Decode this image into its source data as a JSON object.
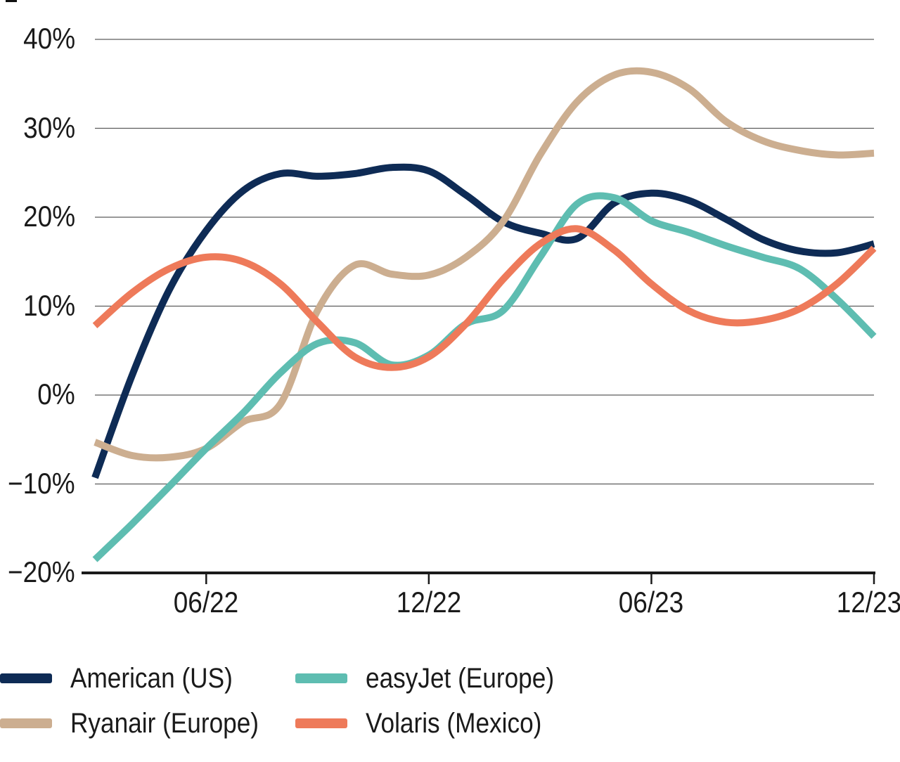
{
  "chart_data": {
    "type": "line",
    "title": "",
    "xlabel": "",
    "ylabel": "",
    "x": [
      "2022-03",
      "2022-04",
      "2022-05",
      "2022-06",
      "2022-07",
      "2022-08",
      "2022-09",
      "2022-10",
      "2022-11",
      "2022-12",
      "2023-01",
      "2023-02",
      "2023-03",
      "2023-04",
      "2023-05",
      "2023-06",
      "2023-07",
      "2023-08",
      "2023-09",
      "2023-10",
      "2023-11",
      "2023-12"
    ],
    "x_ticks": [
      {
        "label": "06/22",
        "index": 3
      },
      {
        "label": "12/22",
        "index": 9
      },
      {
        "label": "06/23",
        "index": 15
      },
      {
        "label": "12/23",
        "index": 21
      }
    ],
    "ylim": [
      -20,
      40
    ],
    "y_ticks": [
      {
        "label": "40%",
        "value": 40
      },
      {
        "label": "30%",
        "value": 30
      },
      {
        "label": "20%",
        "value": 20
      },
      {
        "label": "10%",
        "value": 10
      },
      {
        "label": "0%",
        "value": 0
      },
      {
        "label": "−10%",
        "value": -10
      },
      {
        "label": "−20%",
        "value": -20
      }
    ],
    "grid": "horizontal",
    "legend_position": "bottom-left",
    "series": [
      {
        "name": "American (US)",
        "color": "#0e2b55",
        "values": [
          -9.3,
          2.2,
          11.8,
          18.5,
          23.0,
          24.9,
          24.6,
          24.9,
          25.6,
          25.2,
          22.5,
          19.5,
          18.2,
          17.6,
          21.6,
          22.7,
          21.9,
          19.8,
          17.5,
          16.2,
          16.0,
          17.0
        ]
      },
      {
        "name": "Ryanair (Europe)",
        "color": "#ccae90",
        "values": [
          -5.3,
          -6.8,
          -7.0,
          -6.0,
          -3.0,
          -1.0,
          9.5,
          14.6,
          13.6,
          13.5,
          15.5,
          19.5,
          27.0,
          33.0,
          36.0,
          36.3,
          34.5,
          30.8,
          28.6,
          27.5,
          27.0,
          27.2
        ]
      },
      {
        "name": "easyJet (Europe)",
        "color": "#5ebdb1",
        "values": [
          -18.5,
          -14.5,
          -10.3,
          -6.0,
          -2.0,
          2.5,
          5.8,
          5.9,
          3.4,
          4.5,
          8.0,
          9.5,
          15.5,
          21.5,
          22.2,
          19.6,
          18.3,
          16.8,
          15.5,
          14.2,
          10.8,
          6.6
        ]
      },
      {
        "name": "Volaris (Mexico)",
        "color": "#ee7a5a",
        "values": [
          7.8,
          11.5,
          14.2,
          15.5,
          15.0,
          12.5,
          8.2,
          4.3,
          3.1,
          4.3,
          8.0,
          13.0,
          17.0,
          18.7,
          16.3,
          12.5,
          9.5,
          8.2,
          8.4,
          9.7,
          12.5,
          16.5
        ]
      }
    ]
  },
  "legend": {
    "items": [
      {
        "label": "American (US)",
        "series": 0
      },
      {
        "label": "easyJet (Europe)",
        "series": 2
      },
      {
        "label": "Ryanair (Europe)",
        "series": 1
      },
      {
        "label": "Volaris (Mexico)",
        "series": 3
      }
    ]
  },
  "style": {
    "gridline_color": "#5c5c5c",
    "axis_color": "#1a1a1a",
    "text_color": "#1a1a1a",
    "background": "#ffffff"
  }
}
